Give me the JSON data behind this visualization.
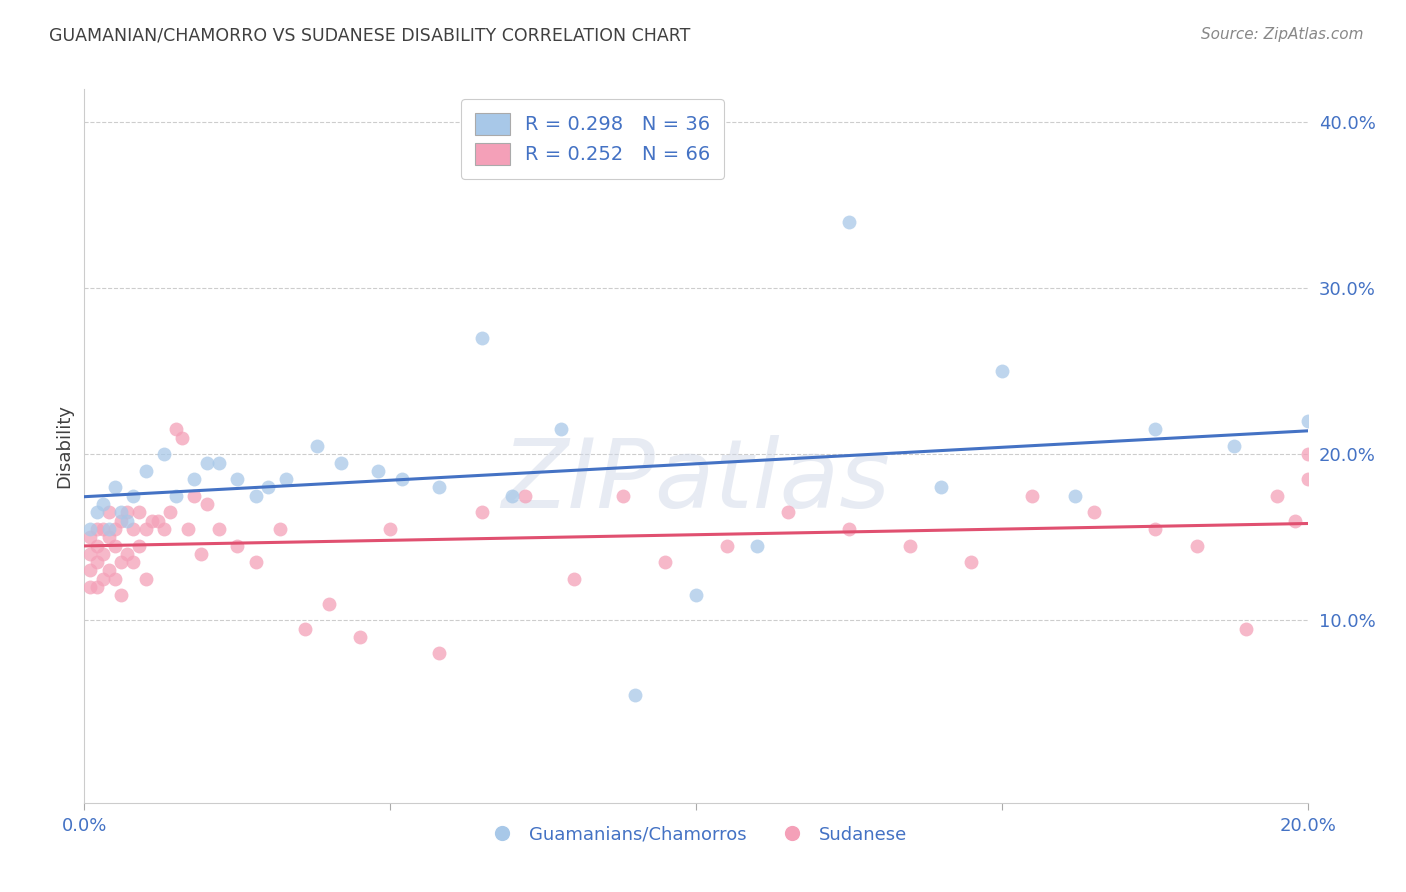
{
  "title": "GUAMANIAN/CHAMORRO VS SUDANESE DISABILITY CORRELATION CHART",
  "source": "Source: ZipAtlas.com",
  "ylabel": "Disability",
  "xlim": [
    0.0,
    0.2
  ],
  "ylim": [
    -0.01,
    0.42
  ],
  "blue_R": 0.298,
  "blue_N": 36,
  "pink_R": 0.252,
  "pink_N": 66,
  "blue_color": "#a8c8e8",
  "pink_color": "#f4a0b8",
  "blue_line_color": "#4472c4",
  "pink_line_color": "#e05070",
  "blue_scatter_x": [
    0.001,
    0.002,
    0.003,
    0.004,
    0.005,
    0.006,
    0.007,
    0.008,
    0.01,
    0.013,
    0.015,
    0.018,
    0.02,
    0.022,
    0.025,
    0.028,
    0.03,
    0.033,
    0.038,
    0.042,
    0.048,
    0.052,
    0.058,
    0.065,
    0.07,
    0.078,
    0.09,
    0.1,
    0.11,
    0.125,
    0.14,
    0.15,
    0.162,
    0.175,
    0.188,
    0.2
  ],
  "blue_scatter_y": [
    0.155,
    0.165,
    0.17,
    0.155,
    0.18,
    0.165,
    0.16,
    0.175,
    0.19,
    0.2,
    0.175,
    0.185,
    0.195,
    0.195,
    0.185,
    0.175,
    0.18,
    0.185,
    0.205,
    0.195,
    0.19,
    0.185,
    0.18,
    0.27,
    0.175,
    0.215,
    0.055,
    0.115,
    0.145,
    0.34,
    0.18,
    0.25,
    0.175,
    0.215,
    0.205,
    0.22
  ],
  "pink_scatter_x": [
    0.001,
    0.001,
    0.001,
    0.001,
    0.002,
    0.002,
    0.002,
    0.002,
    0.003,
    0.003,
    0.003,
    0.004,
    0.004,
    0.004,
    0.005,
    0.005,
    0.005,
    0.006,
    0.006,
    0.006,
    0.007,
    0.007,
    0.008,
    0.008,
    0.009,
    0.009,
    0.01,
    0.01,
    0.011,
    0.012,
    0.013,
    0.014,
    0.015,
    0.016,
    0.017,
    0.018,
    0.019,
    0.02,
    0.022,
    0.025,
    0.028,
    0.032,
    0.036,
    0.04,
    0.045,
    0.05,
    0.058,
    0.065,
    0.072,
    0.08,
    0.088,
    0.095,
    0.105,
    0.115,
    0.125,
    0.135,
    0.145,
    0.155,
    0.165,
    0.175,
    0.182,
    0.19,
    0.195,
    0.198,
    0.2,
    0.2
  ],
  "pink_scatter_y": [
    0.13,
    0.14,
    0.15,
    0.12,
    0.135,
    0.145,
    0.155,
    0.12,
    0.14,
    0.155,
    0.125,
    0.15,
    0.165,
    0.13,
    0.145,
    0.155,
    0.125,
    0.16,
    0.135,
    0.115,
    0.165,
    0.14,
    0.155,
    0.135,
    0.165,
    0.145,
    0.125,
    0.155,
    0.16,
    0.16,
    0.155,
    0.165,
    0.215,
    0.21,
    0.155,
    0.175,
    0.14,
    0.17,
    0.155,
    0.145,
    0.135,
    0.155,
    0.095,
    0.11,
    0.09,
    0.155,
    0.08,
    0.165,
    0.175,
    0.125,
    0.175,
    0.135,
    0.145,
    0.165,
    0.155,
    0.145,
    0.135,
    0.175,
    0.165,
    0.155,
    0.145,
    0.095,
    0.175,
    0.16,
    0.2,
    0.185
  ],
  "watermark": "ZIPatlas",
  "legend_label_blue": "Guamanians/Chamorros",
  "legend_label_pink": "Sudanese",
  "background_color": "#ffffff",
  "grid_color": "#c8c8c8",
  "tick_label_color": "#4472c4",
  "title_color": "#404040",
  "ylabel_color": "#404040"
}
